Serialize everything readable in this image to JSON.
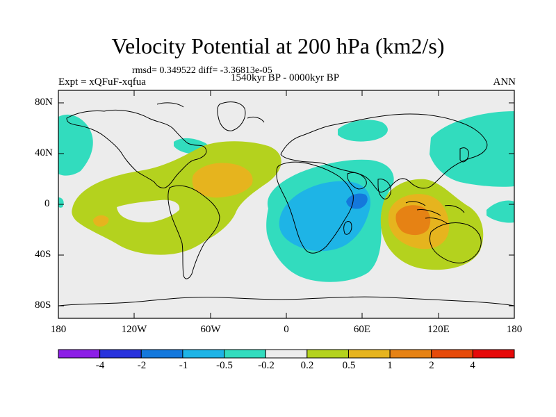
{
  "title": "Velocity Potential at 200 hPa (km2/s)",
  "stats": "rmsd= 0.349522  diff= -3.36813e-05",
  "experiment": "Expt = xQFuF-xqfua",
  "period": "1540kyr BP - 0000kyr BP",
  "season": "ANN",
  "lat_labels": [
    "80N",
    "40N",
    "0",
    "40S",
    "80S"
  ],
  "lon_labels": [
    "180",
    "120W",
    "60W",
    "0",
    "60E",
    "120E",
    "180"
  ],
  "colorbar": {
    "labels": [
      "-4",
      "-2",
      "-1",
      "-0.5",
      "-0.2",
      "0.2",
      "0.5",
      "1",
      "2",
      "4"
    ],
    "colors": [
      "#8c1ee6",
      "#2832dc",
      "#1478dc",
      "#1eb4e6",
      "#32dcbe",
      "#ececec",
      "#b4d21e",
      "#e6b41e",
      "#e68214",
      "#e64a0a",
      "#e60a0a"
    ]
  },
  "colors": {
    "background_zero": "#ececec",
    "coastline": "#000000"
  }
}
